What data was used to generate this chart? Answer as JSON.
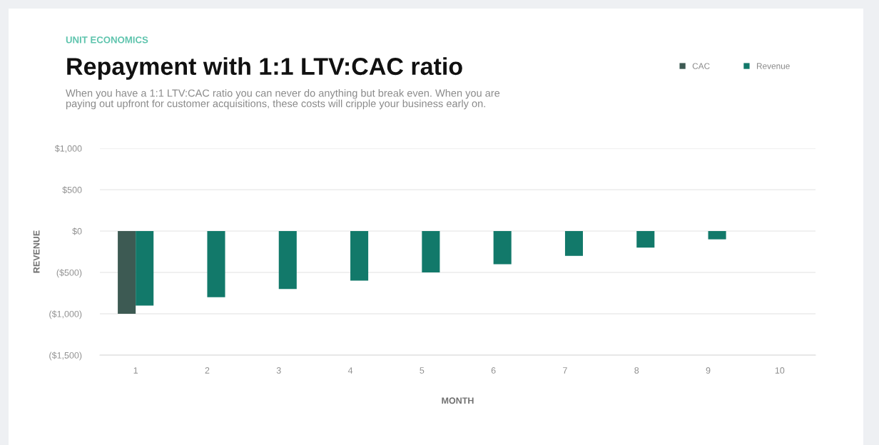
{
  "chart_data": {
    "type": "bar",
    "title": "Repayment with 1:1 LTV:CAC ratio",
    "subtitle": "When you have a 1:1 LTV:CAC ratio you can never do anything but break even. When you are paying out upfront for customer acquisitions, these costs will cripple your business early on.",
    "annotations": [
      "UNIT ECONOMICS"
    ],
    "xlabel": "MONTH",
    "ylabel": "REVENUE",
    "categories": [
      "1",
      "2",
      "3",
      "4",
      "5",
      "6",
      "7",
      "8",
      "9",
      "10"
    ],
    "series": [
      {
        "name": "CAC",
        "color": "#3d5a53",
        "values": [
          -1000,
          null,
          null,
          null,
          null,
          null,
          null,
          null,
          null,
          null
        ]
      },
      {
        "name": "Revenue",
        "color": "#12796a",
        "values": [
          -900,
          -800,
          -700,
          -600,
          -500,
          -400,
          -300,
          -200,
          -100,
          null
        ]
      }
    ],
    "ylim": [
      -1500,
      1000
    ],
    "yticks": [
      {
        "value": 1000,
        "label": "$1,000"
      },
      {
        "value": 500,
        "label": "$500"
      },
      {
        "value": 0,
        "label": "$0"
      },
      {
        "value": -500,
        "label": "($500)"
      },
      {
        "value": -1000,
        "label": "($1,000)"
      },
      {
        "value": -1500,
        "label": "($1,500)"
      }
    ],
    "grid": "y",
    "legend": "top right"
  }
}
